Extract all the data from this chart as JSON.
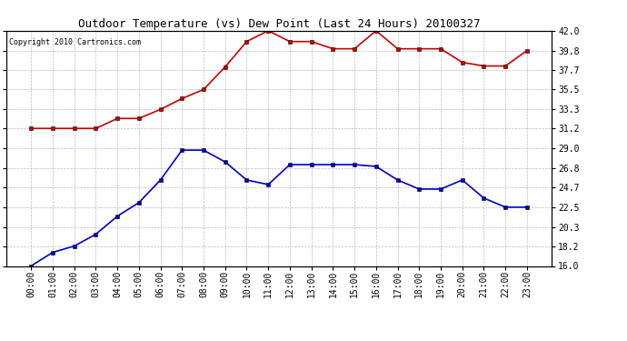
{
  "title": "Outdoor Temperature (vs) Dew Point (Last 24 Hours) 20100327",
  "copyright": "Copyright 2010 Cartronics.com",
  "hours": [
    "00:00",
    "01:00",
    "02:00",
    "03:00",
    "04:00",
    "05:00",
    "06:00",
    "07:00",
    "08:00",
    "09:00",
    "10:00",
    "11:00",
    "12:00",
    "13:00",
    "14:00",
    "15:00",
    "16:00",
    "17:00",
    "18:00",
    "19:00",
    "20:00",
    "21:00",
    "22:00",
    "23:00"
  ],
  "temp": [
    31.2,
    31.2,
    31.2,
    31.2,
    32.3,
    32.3,
    33.3,
    34.5,
    35.5,
    38.0,
    40.8,
    42.0,
    40.8,
    40.8,
    40.0,
    40.0,
    42.0,
    40.0,
    40.0,
    40.0,
    38.5,
    38.1,
    38.1,
    39.8
  ],
  "dew": [
    16.0,
    17.5,
    18.2,
    19.5,
    21.5,
    23.0,
    25.5,
    28.8,
    28.8,
    27.5,
    25.5,
    25.0,
    27.2,
    27.2,
    27.2,
    27.2,
    27.0,
    25.5,
    24.5,
    24.5,
    25.5,
    23.5,
    22.5,
    22.5
  ],
  "temp_color": "#cc0000",
  "dew_color": "#0000cc",
  "bg_color": "#ffffff",
  "grid_color": "#bbbbbb",
  "ylim": [
    16.0,
    42.0
  ],
  "yticks": [
    16.0,
    18.2,
    20.3,
    22.5,
    24.7,
    26.8,
    29.0,
    31.2,
    33.3,
    35.5,
    37.7,
    39.8,
    42.0
  ],
  "marker": "s",
  "markersize": 2.5,
  "linewidth": 1.2,
  "title_fontsize": 9,
  "tick_fontsize": 7
}
